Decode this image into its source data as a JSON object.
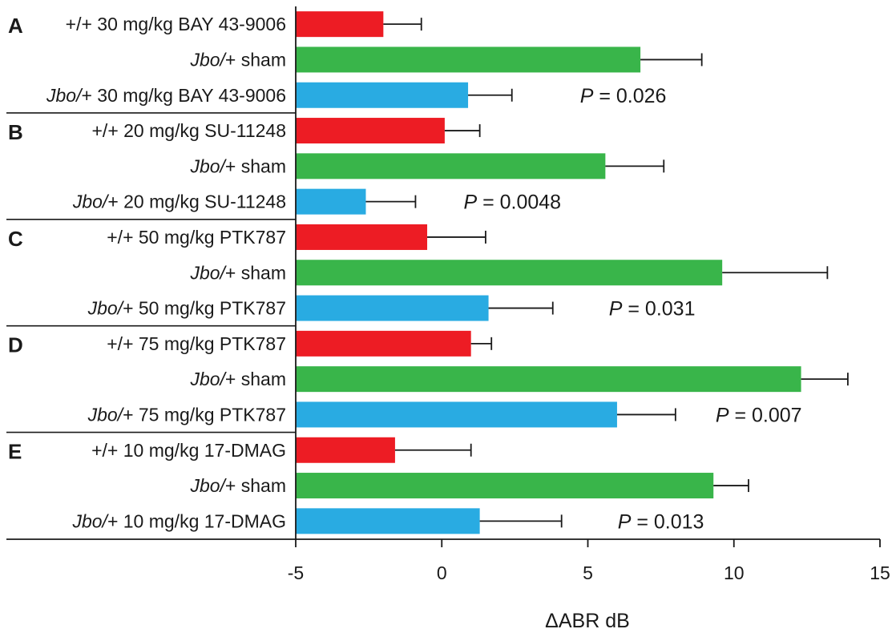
{
  "chart_data": {
    "type": "bar",
    "orientation": "horizontal",
    "xlabel": "ΔABR dB",
    "xlim": [
      -5,
      15
    ],
    "xticks": [
      -5,
      0,
      5,
      10,
      15
    ],
    "tick_labels": [
      "-5",
      "0",
      "5",
      "10",
      "15"
    ],
    "colors": {
      "wildtype_treated": "#ed1c24",
      "jbo_sham": "#39b54a",
      "jbo_treated": "#29abe2"
    },
    "panels": [
      {
        "label": "A",
        "p_label": "P",
        "p_text": " = 0.026",
        "bars": [
          {
            "prefix": "",
            "label": "+/+ 30 mg/kg BAY 43-9006",
            "value": -2.0,
            "error": 1.3,
            "group": "wildtype_treated"
          },
          {
            "prefix": "Jbo/",
            "label": "+ sham",
            "value": 6.8,
            "error": 2.1,
            "group": "jbo_sham"
          },
          {
            "prefix": "Jbo/",
            "label": "+ 30 mg/kg BAY 43-9006",
            "value": 0.9,
            "error": 1.5,
            "group": "jbo_treated"
          }
        ]
      },
      {
        "label": "B",
        "p_label": "P",
        "p_text": " = 0.0048",
        "bars": [
          {
            "prefix": "",
            "label": "+/+ 20 mg/kg SU-11248",
            "value": 0.1,
            "error": 1.2,
            "group": "wildtype_treated"
          },
          {
            "prefix": "Jbo/",
            "label": "+ sham",
            "value": 5.6,
            "error": 2.0,
            "group": "jbo_sham"
          },
          {
            "prefix": "Jbo/",
            "label": "+ 20 mg/kg SU-11248",
            "value": -2.6,
            "error": 1.7,
            "group": "jbo_treated"
          }
        ]
      },
      {
        "label": "C",
        "p_label": "P",
        "p_text": " = 0.031",
        "bars": [
          {
            "prefix": "",
            "label": "+/+ 50 mg/kg PTK787",
            "value": -0.5,
            "error": 2.0,
            "group": "wildtype_treated"
          },
          {
            "prefix": "Jbo/",
            "label": "+ sham",
            "value": 9.6,
            "error": 3.6,
            "group": "jbo_sham"
          },
          {
            "prefix": "Jbo/",
            "label": "+ 50 mg/kg PTK787",
            "value": 1.6,
            "error": 2.2,
            "group": "jbo_treated"
          }
        ]
      },
      {
        "label": "D",
        "p_label": "P",
        "p_text": " = 0.007",
        "bars": [
          {
            "prefix": "",
            "label": "+/+ 75 mg/kg PTK787",
            "value": 1.0,
            "error": 0.7,
            "group": "wildtype_treated"
          },
          {
            "prefix": "Jbo/",
            "label": "+ sham",
            "value": 12.3,
            "error": 1.6,
            "group": "jbo_sham"
          },
          {
            "prefix": "Jbo/",
            "label": "+ 75 mg/kg PTK787",
            "value": 6.0,
            "error": 2.0,
            "group": "jbo_treated"
          }
        ]
      },
      {
        "label": "E",
        "p_label": "P",
        "p_text": " = 0.013",
        "bars": [
          {
            "prefix": "",
            "label": "+/+ 10 mg/kg 17-DMAG",
            "value": -1.6,
            "error": 2.6,
            "group": "wildtype_treated"
          },
          {
            "prefix": "Jbo/",
            "label": "+ sham",
            "value": 9.3,
            "error": 1.2,
            "group": "jbo_sham"
          },
          {
            "prefix": "Jbo/",
            "label": "+ 10 mg/kg 17-DMAG",
            "value": 1.3,
            "error": 2.8,
            "group": "jbo_treated"
          }
        ]
      }
    ]
  }
}
